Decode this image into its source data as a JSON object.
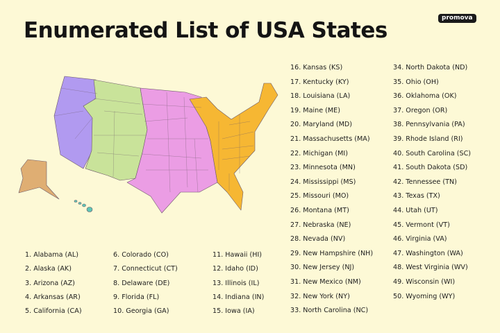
{
  "title": "Enumerated List of USA States",
  "logo": "promova",
  "colors": {
    "background": "#fdf9d6",
    "west": "#b19af0",
    "mountain": "#c9e39a",
    "central": "#eb9de4",
    "east": "#f6b733",
    "alaska": "#dfae73",
    "hawaii": "#5fc6b6"
  },
  "states": [
    "1. Alabama (AL)",
    "2. Alaska (AK)",
    "3. Arizona (AZ)",
    "4. Arkansas (AR)",
    "5. California (CA)",
    "6. Colorado (CO)",
    "7. Connecticut (CT)",
    "8. Delaware (DE)",
    "9. Florida (FL)",
    "10. Georgia (GA)",
    "11. Hawaii (HI)",
    "12. Idaho (ID)",
    "13. Illinois (IL)",
    "14. Indiana (IN)",
    "15. Iowa (IA)",
    "16. Kansas (KS)",
    "17. Kentucky (KY)",
    "18. Louisiana (LA)",
    "19. Maine (ME)",
    "20. Maryland (MD)",
    "21. Massachusetts (MA)",
    "22. Michigan (MI)",
    "23. Minnesota (MN)",
    "24. Mississippi (MS)",
    "25. Missouri (MO)",
    "26. Montana (MT)",
    "27. Nebraska (NE)",
    "28. Nevada (NV)",
    "29. New Hampshire (NH)",
    "30. New Jersey (NJ)",
    "31. New Mexico (NM)",
    "32. New York (NY)",
    "33. North Carolina (NC)",
    "34. North Dakota (ND)",
    "35. Ohio (OH)",
    "36. Oklahoma (OK)",
    "37. Oregon (OR)",
    "38. Pennsylvania (PA)",
    "39. Rhode Island (RI)",
    "40. South Carolina (SC)",
    "41. South Dakota (SD)",
    "42. Tennessee (TN)",
    "43. Texas (TX)",
    "44. Utah (UT)",
    "45. Vermont (VT)",
    "46. Virginia (VA)",
    "47. Washington (WA)",
    "48. West Virginia (WV)",
    "49. Wisconsin (WI)",
    "50. Wyoming (WY)"
  ]
}
